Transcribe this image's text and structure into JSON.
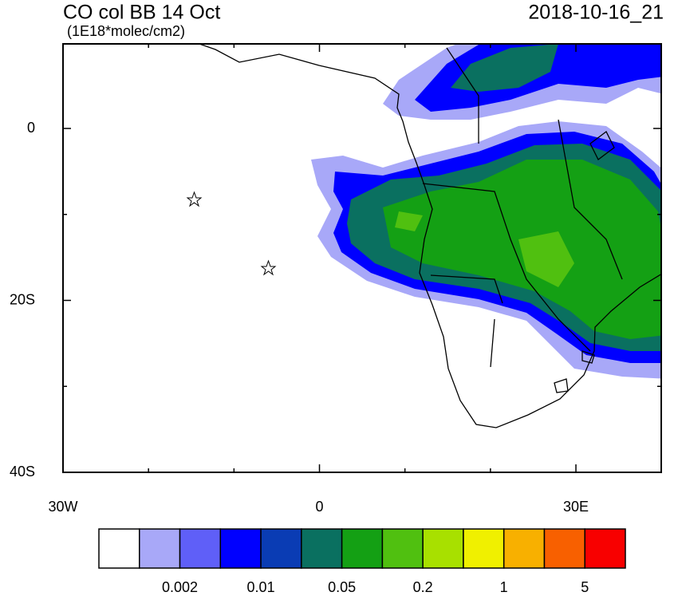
{
  "header": {
    "title": "CO col BB 14 Oct",
    "units": "(1E18*molec/cm2)",
    "date": "2018-10-16_21"
  },
  "axes": {
    "y_labels": [
      "0",
      "20S",
      "40S"
    ],
    "x_labels": [
      "30W",
      "0",
      "30E"
    ]
  },
  "colorbar": {
    "colors": [
      "#ffffff",
      "#a8a8f8",
      "#5f5ff8",
      "#0000ff",
      "#0a3cb4",
      "#0a7060",
      "#14a014",
      "#50c010",
      "#a8e000",
      "#f0f000",
      "#f8b000",
      "#f86000",
      "#f80000"
    ],
    "labels": [
      "0.002",
      "0.01",
      "0.05",
      "0.2",
      "1",
      "5"
    ]
  }
}
